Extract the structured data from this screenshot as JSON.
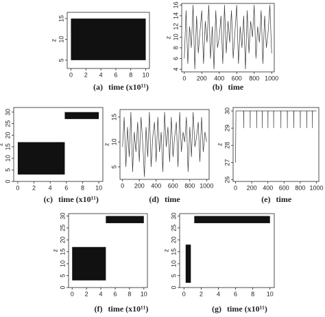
{
  "chart_data": [
    {
      "type": "band",
      "panel_label": "(a)",
      "xlabel": "time (x10¹¹)",
      "ylabel": "z",
      "color": "#111111",
      "segments": [
        {
          "x": [
            0,
            10
          ],
          "y": [
            5,
            15
          ]
        }
      ],
      "xlim": [
        -0.5,
        10.5
      ],
      "xticks": [
        0,
        2,
        4,
        6,
        8,
        10
      ],
      "ylim": [
        3,
        16.5
      ],
      "yticks": [
        5,
        10,
        15
      ]
    },
    {
      "type": "line",
      "panel_label": "(b)",
      "xlabel": "time",
      "ylabel": "z",
      "color": "#333333",
      "x": [
        0,
        20,
        40,
        60,
        80,
        100,
        120,
        140,
        160,
        180,
        200,
        220,
        240,
        260,
        280,
        300,
        320,
        340,
        360,
        380,
        400,
        420,
        440,
        460,
        480,
        500,
        520,
        540,
        560,
        580,
        600,
        620,
        640,
        660,
        680,
        700,
        720,
        740,
        760,
        780,
        800,
        820,
        840,
        860,
        880,
        900,
        920,
        940,
        960,
        980,
        1000
      ],
      "values": [
        6,
        15,
        5,
        12,
        8,
        16,
        4,
        14,
        7,
        11,
        15,
        5,
        13,
        9,
        16,
        6,
        12,
        4,
        15,
        8,
        10,
        14,
        5,
        16,
        7,
        13,
        9,
        15,
        6,
        11,
        16,
        5,
        12,
        8,
        14,
        4,
        15,
        7,
        13,
        10,
        16,
        6,
        12,
        9,
        15,
        5,
        14,
        8,
        11,
        16,
        7
      ],
      "xlim": [
        -30,
        1030
      ],
      "xticks": [
        0,
        200,
        400,
        600,
        800,
        1000
      ],
      "ylim": [
        3.5,
        16.3
      ],
      "yticks": [
        4,
        6,
        8,
        10,
        12,
        14,
        16
      ]
    },
    {
      "type": "band",
      "panel_label": "(c)",
      "xlabel": "time (x10¹¹)",
      "ylabel": "z",
      "color": "#111111",
      "segments": [
        {
          "x": [
            0,
            5.8
          ],
          "y": [
            3,
            17
          ]
        },
        {
          "x": [
            5.8,
            10
          ],
          "y": [
            27,
            30
          ]
        }
      ],
      "xlim": [
        -0.5,
        10.5
      ],
      "xticks": [
        0,
        2,
        4,
        6,
        8,
        10
      ],
      "ylim": [
        0,
        32
      ],
      "yticks": [
        0,
        5,
        10,
        15,
        20,
        25,
        30
      ]
    },
    {
      "type": "line",
      "panel_label": "(d)",
      "xlabel": "time",
      "ylabel": "z",
      "color": "#333333",
      "x": [
        0,
        20,
        40,
        60,
        80,
        100,
        120,
        140,
        160,
        180,
        200,
        220,
        240,
        260,
        280,
        300,
        320,
        340,
        360,
        380,
        400,
        420,
        440,
        460,
        480,
        500,
        520,
        540,
        560,
        580,
        600,
        620,
        640,
        660,
        680,
        700,
        720,
        740,
        760,
        780,
        800,
        820,
        840,
        860,
        880,
        900,
        920,
        940,
        960,
        980,
        1000
      ],
      "values": [
        9,
        15,
        5,
        13,
        7,
        16,
        4,
        12,
        8,
        14,
        6,
        15,
        10,
        3,
        13,
        7,
        16,
        5,
        11,
        14,
        6,
        15,
        8,
        12,
        4,
        16,
        9,
        13,
        6,
        15,
        7,
        11,
        14,
        5,
        16,
        8,
        12,
        10,
        15,
        4,
        13,
        7,
        16,
        9,
        11,
        14,
        6,
        15,
        8,
        12,
        10
      ],
      "xlim": [
        -30,
        1030
      ],
      "xticks": [
        0,
        200,
        400,
        600,
        800,
        1000
      ],
      "ylim": [
        2.5,
        16.5
      ],
      "yticks": [
        5,
        10,
        15
      ]
    },
    {
      "type": "line",
      "panel_label": "(e)",
      "xlabel": "time",
      "ylabel": "z",
      "color": "#333333",
      "x": [
        0,
        5,
        100,
        101,
        102,
        180,
        181,
        182,
        260,
        261,
        262,
        330,
        331,
        332,
        400,
        401,
        402,
        470,
        471,
        472,
        560,
        561,
        562,
        640,
        641,
        642,
        720,
        721,
        722,
        800,
        801,
        802,
        880,
        881,
        882,
        950,
        951,
        952,
        1000
      ],
      "values": [
        27,
        30,
        30,
        29,
        30,
        30,
        29,
        30,
        30,
        29,
        30,
        30,
        29,
        30,
        30,
        29,
        30,
        30,
        29,
        30,
        30,
        29,
        30,
        30,
        29,
        30,
        30,
        29,
        30,
        30,
        29,
        30,
        30,
        29,
        30,
        30,
        29,
        30,
        30
      ],
      "xlim": [
        -30,
        1030
      ],
      "xticks": [
        0,
        200,
        400,
        600,
        800,
        1000
      ],
      "ylim": [
        25.9,
        30.2
      ],
      "yticks": [
        26,
        27,
        28,
        29,
        30
      ]
    },
    {
      "type": "band",
      "panel_label": "(f)",
      "xlabel": "time (x10¹¹)",
      "ylabel": "z",
      "color": "#111111",
      "segments": [
        {
          "x": [
            0,
            4.7
          ],
          "y": [
            3,
            17
          ]
        },
        {
          "x": [
            4.7,
            10
          ],
          "y": [
            27,
            30
          ]
        }
      ],
      "xlim": [
        -0.5,
        10.5
      ],
      "xticks": [
        0,
        2,
        4,
        6,
        8,
        10
      ],
      "ylim": [
        0,
        31
      ],
      "yticks": [
        0,
        5,
        10,
        15,
        20,
        25,
        30
      ]
    },
    {
      "type": "band",
      "panel_label": "(g)",
      "xlabel": "time (x10¹¹)",
      "ylabel": "z",
      "color": "#111111",
      "segments": [
        {
          "x": [
            0.2,
            0.8
          ],
          "y": [
            2,
            18
          ]
        },
        {
          "x": [
            1.2,
            10
          ],
          "y": [
            27,
            30
          ]
        }
      ],
      "xlim": [
        -0.5,
        10.5
      ],
      "xticks": [
        0,
        2,
        4,
        6,
        8,
        10
      ],
      "ylim": [
        0,
        31
      ],
      "yticks": [
        0,
        5,
        10,
        15,
        20,
        25,
        30
      ]
    }
  ]
}
